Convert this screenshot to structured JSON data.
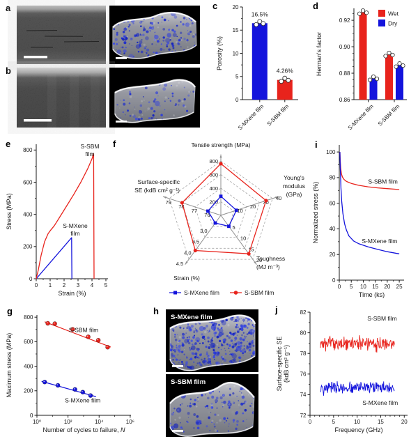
{
  "panel_labels": {
    "a": "a",
    "b": "b",
    "c": "c",
    "d": "d",
    "e": "e",
    "f": "f",
    "g": "g",
    "h": "h",
    "i": "i",
    "j": "j"
  },
  "colors": {
    "red": "#e8231c",
    "blue": "#1414dc",
    "axis": "#1a1a1a"
  },
  "images": {
    "h_top_label": "S-MXene film",
    "h_bottom_label": "S-SBM film"
  },
  "chart_data": [
    {
      "id": "c",
      "type": "bar",
      "title": "",
      "ylabel": "Porosity (%)",
      "ylim": [
        0,
        20
      ],
      "yticks": [
        0,
        5,
        10,
        15,
        20
      ],
      "minor_y": 2.5,
      "categories": [
        "S-MXene film",
        "S-SBM film"
      ],
      "values": [
        16.5,
        4.26
      ],
      "value_labels": [
        "16.5%",
        "4.26%"
      ],
      "bar_colors": [
        "blue",
        "red"
      ],
      "points_per_bar": 3
    },
    {
      "id": "d",
      "type": "grouped_bar",
      "ylabel": "Herman's factor",
      "ylim": [
        0.86,
        0.929
      ],
      "yticks": [
        0.86,
        0.88,
        0.9,
        0.92
      ],
      "ytick_labels": [
        "0.86",
        "0.88",
        "0.90",
        "0.92"
      ],
      "minor_y": 0.005,
      "categories": [
        "S-MXene film",
        "S-SBM film"
      ],
      "series": [
        {
          "name": "Wet",
          "color": "red",
          "values": [
            0.926,
            0.894
          ]
        },
        {
          "name": "Dry",
          "color": "blue",
          "values": [
            0.876,
            0.886
          ]
        }
      ],
      "legend_position": "top-right",
      "points_per_bar": 3
    },
    {
      "id": "e",
      "type": "line",
      "xlabel": "Strain (%)",
      "ylabel": "Stress (MPa)",
      "xlim": [
        0,
        5.15
      ],
      "ylim": [
        0,
        836
      ],
      "xticks": [
        0,
        1,
        2,
        3,
        4,
        5
      ],
      "yticks": [
        0,
        200,
        400,
        600,
        800
      ],
      "minor_x": 0.5,
      "minor_y": 100,
      "series": [
        {
          "name": "S-MXene film",
          "color": "blue",
          "x": [
            0,
            2.54,
            2.56
          ],
          "y": [
            0,
            255,
            0
          ]
        },
        {
          "name": "S-SBM film",
          "color": "red",
          "x": [
            0,
            0.15,
            0.35,
            0.6,
            0.85,
            1.0,
            1.3,
            1.7,
            2.2,
            2.7,
            3.2,
            3.7,
            4.0,
            4.12,
            4.15
          ],
          "y": [
            0,
            55,
            145,
            230,
            280,
            298,
            330,
            385,
            455,
            525,
            600,
            685,
            745,
            778,
            0
          ]
        }
      ],
      "annotations": [
        {
          "lines": [
            "S-SBM",
            "film"
          ],
          "x": 3.85,
          "y": 822,
          "anchor": "middle"
        },
        {
          "lines": [
            "S-MXene",
            "film"
          ],
          "x": 2.8,
          "y": 330,
          "anchor": "middle"
        }
      ]
    },
    {
      "id": "f",
      "type": "radar",
      "axes": [
        {
          "label_lines": [
            "Tensile strength (MPa)"
          ],
          "ticks": [
            "200",
            "400",
            "600",
            "800"
          ],
          "min": 0,
          "max": 800
        },
        {
          "label_lines": [
            "Young's",
            "modulus",
            "(GPa)"
          ],
          "ticks": [
            "10",
            "20",
            "30",
            "40"
          ],
          "min": 0,
          "max": 40
        },
        {
          "label_lines": [
            "Toughness",
            "(MJ m⁻³)"
          ],
          "ticks": [
            "5",
            "10",
            "15",
            "20"
          ],
          "min": 0,
          "max": 20
        },
        {
          "label_lines": [
            "Strain (%)"
          ],
          "ticks": [
            "3.0",
            "3.5",
            "4.0",
            "4.5"
          ],
          "min": 2.5,
          "max": 4.5
        },
        {
          "label_lines": [
            "Surface-specific",
            "SE (kdB cm² g⁻¹)"
          ],
          "ticks": [
            "76",
            "77",
            "78",
            "79"
          ],
          "min": 75,
          "max": 79
        }
      ],
      "series": [
        {
          "name": "S-MXene film",
          "color": "blue",
          "marker": "square",
          "values": [
            280,
            12,
            5,
            2.85,
            76
          ]
        },
        {
          "name": "S-SBM film",
          "color": "red",
          "marker": "circle",
          "values": [
            760,
            35,
            17.5,
            4.1,
            78
          ]
        }
      ]
    },
    {
      "id": "g",
      "type": "cycles",
      "xlabel": "Number of cycles to failure, ",
      "xlabel_italic": "N",
      "ylabel": "Maximum stress (MPa)",
      "xlim_exp": [
        0,
        6.05
      ],
      "xticks_exp": [
        0,
        2,
        4,
        6
      ],
      "xtick_labels": [
        "10⁰",
        "10²",
        "10⁴",
        "10⁶"
      ],
      "minor_x_exp": [
        1,
        3,
        5
      ],
      "ylim": [
        0,
        818
      ],
      "yticks": [
        0,
        200,
        400,
        600,
        800
      ],
      "minor_y": 100,
      "series": [
        {
          "name": "S-SBM film",
          "color": "red",
          "points": [
            [
              0.7,
              750
            ],
            [
              1.15,
              747
            ],
            [
              2.3,
              701
            ],
            [
              3.3,
              640
            ],
            [
              3.95,
              612
            ],
            [
              4.55,
              555
            ]
          ],
          "fit": [
            [
              0.5,
              762
            ],
            [
              4.75,
              556
            ]
          ]
        },
        {
          "name": "S-MXene film",
          "color": "blue",
          "points": [
            [
              0.5,
              271
            ],
            [
              1.35,
              244
            ],
            [
              2.45,
              211
            ],
            [
              2.95,
              189
            ],
            [
              3.45,
              161
            ]
          ],
          "fit": [
            [
              0.3,
              277
            ],
            [
              3.8,
              152
            ]
          ]
        }
      ],
      "annotations": [
        {
          "text": "S-SBM film",
          "x": 2.05,
          "y": 695,
          "anchor": "start"
        },
        {
          "text": "S-MXene film",
          "x": 1.8,
          "y": 122,
          "anchor": "start"
        }
      ]
    },
    {
      "id": "i",
      "type": "line",
      "xlabel": "Time (ks)",
      "ylabel": "Normalized stress (%)",
      "xlim": [
        0,
        27
      ],
      "ylim": [
        0,
        105.5
      ],
      "xticks": [
        0,
        5,
        10,
        15,
        20,
        25
      ],
      "yticks": [
        0,
        20,
        40,
        60,
        80,
        100
      ],
      "minor_x": 2.5,
      "minor_y": 10,
      "series": [
        {
          "name": "S-SBM film",
          "color": "red",
          "x": [
            0.25,
            0.4,
            0.6,
            0.9,
            1.3,
            2,
            3,
            5,
            8,
            12,
            16,
            20,
            25
          ],
          "y": [
            100,
            93,
            87,
            83,
            80.5,
            78.5,
            77,
            75.5,
            74,
            72.8,
            72,
            71.4,
            70.7
          ]
        },
        {
          "name": "S-MXene film",
          "color": "blue",
          "x": [
            0.25,
            0.4,
            0.7,
            1,
            1.5,
            2.2,
            3,
            4,
            6,
            8,
            12,
            16,
            20,
            25
          ],
          "y": [
            100,
            88,
            72,
            62,
            52,
            44,
            39,
            34.5,
            30.5,
            28.5,
            26,
            24,
            22.2,
            20.5
          ]
        }
      ],
      "annotations": [
        {
          "text": "S-SBM film",
          "x": 12,
          "y": 77,
          "anchor": "start"
        },
        {
          "text": "S-MXene film",
          "x": 9.4,
          "y": 30.5,
          "anchor": "start"
        }
      ]
    },
    {
      "id": "j",
      "type": "noisy",
      "xlabel": "Frequency (GHz)",
      "ylabel_lines": [
        "Surface-specific SE",
        "(kdB cm² g⁻¹)"
      ],
      "xlim": [
        0,
        20.7
      ],
      "ylim": [
        72,
        82
      ],
      "xticks": [
        0,
        5,
        10,
        15,
        20
      ],
      "yticks": [
        72,
        74,
        76,
        78,
        80,
        82
      ],
      "minor_x": 1,
      "minor_y": 1,
      "series": [
        {
          "name": "S-SBM film",
          "color": "red",
          "mean": 78.9,
          "amplitude": 0.75,
          "x_start": 2.2,
          "x_end": 18,
          "seed": 7
        },
        {
          "name": "S-MXene film",
          "color": "blue",
          "mean": 74.7,
          "amplitude": 0.6,
          "x_start": 2.2,
          "x_end": 18,
          "seed": 13
        }
      ],
      "annotations": [
        {
          "text": "S-SBM film",
          "x": 15.3,
          "y": 81.4,
          "anchor": "middle"
        },
        {
          "text": "S-MXene film",
          "x": 14.9,
          "y": 73.2,
          "anchor": "middle"
        }
      ]
    }
  ]
}
